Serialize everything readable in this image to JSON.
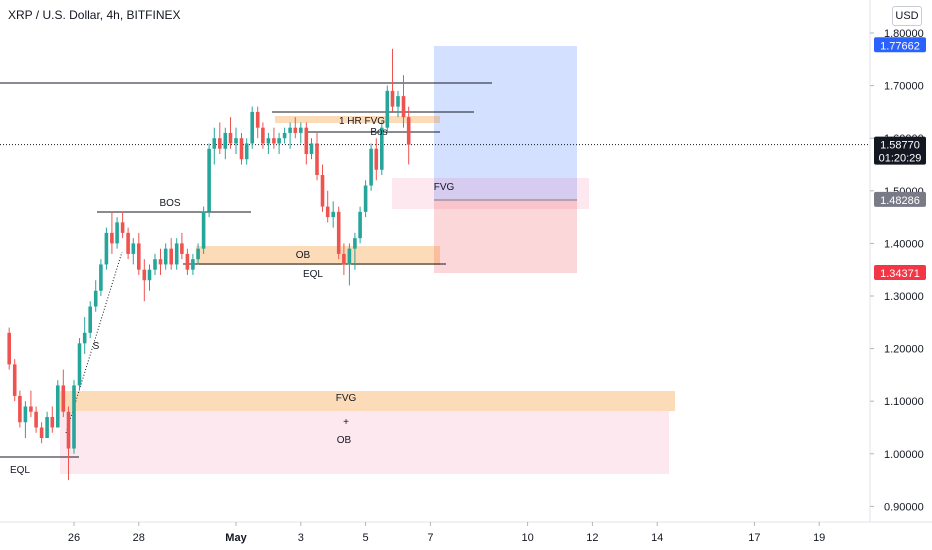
{
  "header": {
    "title": "XRP / U.S. Dollar, 4h, BITFINEX",
    "currency": "USD"
  },
  "colors": {
    "up": "#26a69a",
    "down": "#ef5350",
    "bg": "#ffffff",
    "axis_text": "#131722",
    "pill_blue": "#2962ff",
    "pill_black": "#131722",
    "pill_gray": "#787b86",
    "pill_red": "#f23645"
  },
  "chart_data": {
    "type": "candlestick",
    "yaxis": {
      "ticks": [
        "1.80000",
        "1.70000",
        "1.60000",
        "1.50000",
        "1.40000",
        "1.30000",
        "1.20000",
        "1.10000",
        "1.00000",
        "0.90000"
      ]
    },
    "xaxis": {
      "ticks": [
        {
          "label": "26",
          "day": 26
        },
        {
          "label": "28",
          "day": 28
        },
        {
          "label": "May",
          "day": 31
        },
        {
          "label": "3",
          "day": 33
        },
        {
          "label": "5",
          "day": 35
        },
        {
          "label": "7",
          "day": 37
        },
        {
          "label": "10",
          "day": 40
        },
        {
          "label": "12",
          "day": 42
        },
        {
          "label": "14",
          "day": 44
        },
        {
          "label": "17",
          "day": 47
        },
        {
          "label": "19",
          "day": 49
        }
      ]
    },
    "price_labels": [
      {
        "text": "1.77662",
        "value": 1.77662,
        "style": "blue"
      },
      {
        "text": "1.58770",
        "value": 1.5877,
        "style": "black",
        "sub": "01:20:29"
      },
      {
        "text": "1.48286",
        "value": 1.48286,
        "style": "gray"
      },
      {
        "text": "1.34371",
        "value": 1.34371,
        "style": "red"
      }
    ],
    "current_price": 1.5877,
    "candles": [
      [
        24.0,
        1.23,
        1.24,
        1.16,
        1.17
      ],
      [
        24.17,
        1.17,
        1.18,
        1.1,
        1.11
      ],
      [
        24.33,
        1.11,
        1.12,
        1.05,
        1.06
      ],
      [
        24.5,
        1.06,
        1.1,
        1.03,
        1.09
      ],
      [
        24.67,
        1.09,
        1.12,
        1.07,
        1.08
      ],
      [
        24.83,
        1.08,
        1.09,
        1.04,
        1.05
      ],
      [
        25.0,
        1.05,
        1.06,
        1.02,
        1.03
      ],
      [
        25.17,
        1.03,
        1.08,
        1.03,
        1.07
      ],
      [
        25.33,
        1.07,
        1.09,
        1.04,
        1.05
      ],
      [
        25.5,
        1.05,
        1.14,
        1.05,
        1.13
      ],
      [
        25.67,
        1.13,
        1.16,
        1.07,
        1.08
      ],
      [
        25.83,
        1.08,
        1.09,
        0.95,
        1.01
      ],
      [
        26.0,
        1.01,
        1.14,
        1.0,
        1.13
      ],
      [
        26.17,
        1.13,
        1.22,
        1.12,
        1.21
      ],
      [
        26.33,
        1.21,
        1.26,
        1.19,
        1.23
      ],
      [
        26.5,
        1.23,
        1.29,
        1.22,
        1.28
      ],
      [
        26.67,
        1.28,
        1.33,
        1.27,
        1.31
      ],
      [
        26.83,
        1.31,
        1.37,
        1.3,
        1.36
      ],
      [
        27.0,
        1.36,
        1.43,
        1.35,
        1.42
      ],
      [
        27.17,
        1.42,
        1.46,
        1.38,
        1.4
      ],
      [
        27.33,
        1.4,
        1.45,
        1.39,
        1.44
      ],
      [
        27.5,
        1.44,
        1.46,
        1.41,
        1.42
      ],
      [
        27.67,
        1.42,
        1.43,
        1.37,
        1.38
      ],
      [
        27.83,
        1.38,
        1.41,
        1.36,
        1.4
      ],
      [
        28.0,
        1.4,
        1.42,
        1.34,
        1.35
      ],
      [
        28.17,
        1.35,
        1.37,
        1.29,
        1.33
      ],
      [
        28.33,
        1.33,
        1.36,
        1.31,
        1.35
      ],
      [
        28.5,
        1.35,
        1.38,
        1.34,
        1.37
      ],
      [
        28.67,
        1.37,
        1.39,
        1.34,
        1.36
      ],
      [
        28.83,
        1.36,
        1.4,
        1.35,
        1.39
      ],
      [
        29.0,
        1.39,
        1.41,
        1.35,
        1.36
      ],
      [
        29.17,
        1.36,
        1.41,
        1.35,
        1.4
      ],
      [
        29.33,
        1.4,
        1.42,
        1.37,
        1.38
      ],
      [
        29.5,
        1.38,
        1.39,
        1.34,
        1.35
      ],
      [
        29.67,
        1.35,
        1.38,
        1.34,
        1.37
      ],
      [
        29.83,
        1.37,
        1.4,
        1.36,
        1.39
      ],
      [
        30.0,
        1.39,
        1.47,
        1.38,
        1.46
      ],
      [
        30.17,
        1.46,
        1.59,
        1.45,
        1.58
      ],
      [
        30.33,
        1.58,
        1.62,
        1.55,
        1.6
      ],
      [
        30.5,
        1.6,
        1.63,
        1.57,
        1.58
      ],
      [
        30.67,
        1.58,
        1.62,
        1.56,
        1.61
      ],
      [
        30.83,
        1.61,
        1.64,
        1.58,
        1.59
      ],
      [
        31.0,
        1.59,
        1.62,
        1.57,
        1.6
      ],
      [
        31.17,
        1.6,
        1.61,
        1.55,
        1.56
      ],
      [
        31.33,
        1.56,
        1.6,
        1.55,
        1.59
      ],
      [
        31.5,
        1.59,
        1.66,
        1.58,
        1.65
      ],
      [
        31.67,
        1.65,
        1.66,
        1.6,
        1.62
      ],
      [
        31.83,
        1.62,
        1.63,
        1.58,
        1.59
      ],
      [
        32.0,
        1.59,
        1.61,
        1.57,
        1.6
      ],
      [
        32.17,
        1.6,
        1.62,
        1.58,
        1.59
      ],
      [
        32.33,
        1.59,
        1.61,
        1.57,
        1.6
      ],
      [
        32.5,
        1.6,
        1.62,
        1.59,
        1.61
      ],
      [
        32.67,
        1.61,
        1.63,
        1.58,
        1.62
      ],
      [
        32.83,
        1.62,
        1.64,
        1.6,
        1.61
      ],
      [
        33.0,
        1.61,
        1.63,
        1.59,
        1.62
      ],
      [
        33.17,
        1.62,
        1.63,
        1.55,
        1.57
      ],
      [
        33.33,
        1.57,
        1.6,
        1.56,
        1.59
      ],
      [
        33.5,
        1.59,
        1.61,
        1.52,
        1.53
      ],
      [
        33.67,
        1.53,
        1.55,
        1.46,
        1.47
      ],
      [
        33.83,
        1.47,
        1.5,
        1.44,
        1.45
      ],
      [
        34.0,
        1.45,
        1.48,
        1.43,
        1.46
      ],
      [
        34.17,
        1.46,
        1.47,
        1.37,
        1.38
      ],
      [
        34.33,
        1.38,
        1.4,
        1.34,
        1.36
      ],
      [
        34.5,
        1.36,
        1.4,
        1.32,
        1.39
      ],
      [
        34.67,
        1.39,
        1.42,
        1.35,
        1.41
      ],
      [
        34.83,
        1.41,
        1.47,
        1.4,
        1.46
      ],
      [
        35.0,
        1.46,
        1.52,
        1.45,
        1.51
      ],
      [
        35.17,
        1.51,
        1.59,
        1.5,
        1.58
      ],
      [
        35.33,
        1.58,
        1.6,
        1.52,
        1.54
      ],
      [
        35.5,
        1.54,
        1.63,
        1.53,
        1.62
      ],
      [
        35.67,
        1.62,
        1.7,
        1.61,
        1.69
      ],
      [
        35.83,
        1.69,
        1.77,
        1.65,
        1.66
      ],
      [
        36.0,
        1.66,
        1.69,
        1.64,
        1.68
      ],
      [
        36.17,
        1.68,
        1.72,
        1.62,
        1.64
      ],
      [
        36.33,
        1.64,
        1.66,
        1.55,
        1.5877
      ]
    ]
  },
  "annotations": {
    "bos_left": "BOS",
    "fvg_1h": "1 HR FVG",
    "bos_right": "Bos",
    "fvg_right": "FVG",
    "ob_mid": "OB",
    "eql_mid": "EQL",
    "s_label": "S",
    "fvg_bottom": "FVG",
    "plus": "+",
    "ob_bottom": "OB",
    "eql_left": "EQL"
  }
}
